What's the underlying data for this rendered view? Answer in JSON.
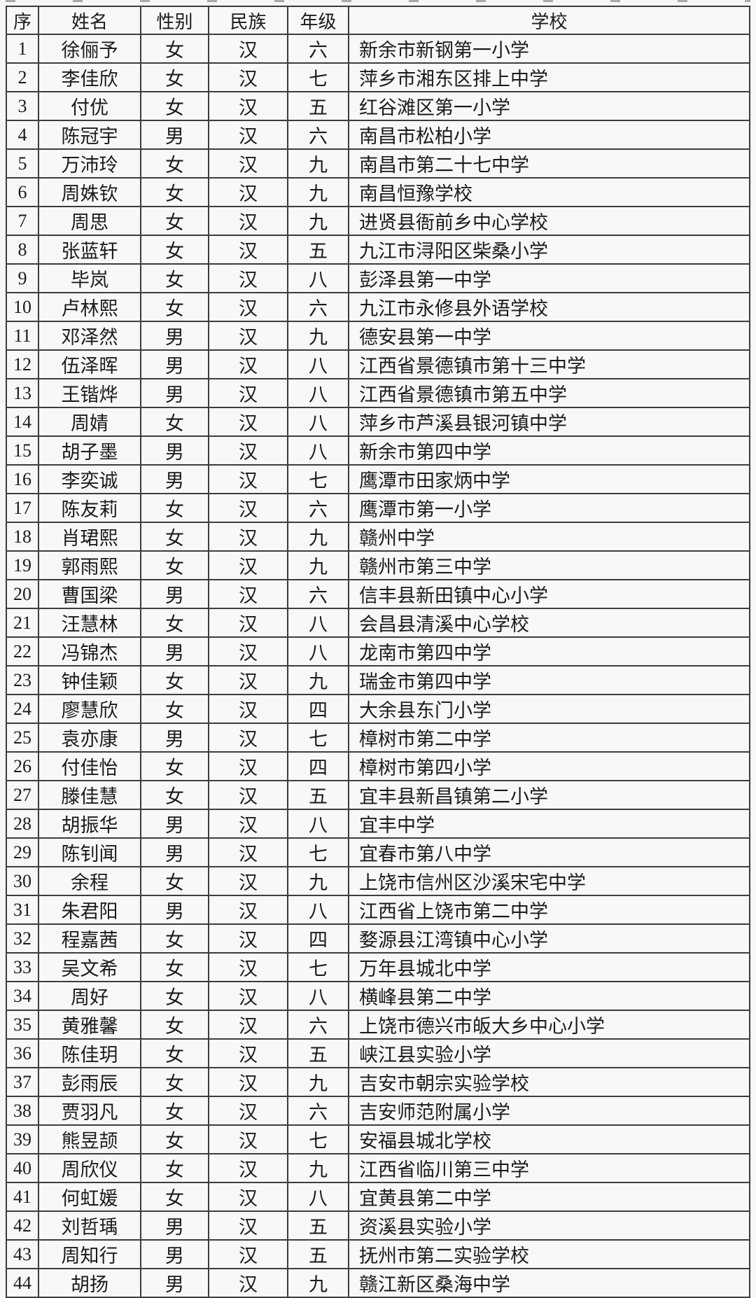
{
  "table": {
    "headers": {
      "no": "序",
      "name": "姓名",
      "gender": "性别",
      "ethnicity": "民族",
      "grade": "年级",
      "school": "学校"
    },
    "rows": [
      {
        "no": "1",
        "name": "徐俪予",
        "gender": "女",
        "ethnicity": "汉",
        "grade": "六",
        "school": "新余市新钢第一小学"
      },
      {
        "no": "2",
        "name": "李佳欣",
        "gender": "女",
        "ethnicity": "汉",
        "grade": "七",
        "school": "萍乡市湘东区排上中学"
      },
      {
        "no": "3",
        "name": "付优",
        "gender": "女",
        "ethnicity": "汉",
        "grade": "五",
        "school": "红谷滩区第一小学"
      },
      {
        "no": "4",
        "name": "陈冠宇",
        "gender": "男",
        "ethnicity": "汉",
        "grade": "六",
        "school": "南昌市松柏小学"
      },
      {
        "no": "5",
        "name": "万沛玲",
        "gender": "女",
        "ethnicity": "汉",
        "grade": "九",
        "school": "南昌市第二十七中学"
      },
      {
        "no": "6",
        "name": "周姝钦",
        "gender": "女",
        "ethnicity": "汉",
        "grade": "九",
        "school": "南昌恒豫学校"
      },
      {
        "no": "7",
        "name": "周思",
        "gender": "女",
        "ethnicity": "汉",
        "grade": "九",
        "school": "进贤县衙前乡中心学校"
      },
      {
        "no": "8",
        "name": "张蓝轩",
        "gender": "女",
        "ethnicity": "汉",
        "grade": "五",
        "school": "九江市浔阳区柴桑小学"
      },
      {
        "no": "9",
        "name": "毕岚",
        "gender": "女",
        "ethnicity": "汉",
        "grade": "八",
        "school": "彭泽县第一中学"
      },
      {
        "no": "10",
        "name": "卢林熙",
        "gender": "女",
        "ethnicity": "汉",
        "grade": "六",
        "school": "九江市永修县外语学校"
      },
      {
        "no": "11",
        "name": "邓泽然",
        "gender": "男",
        "ethnicity": "汉",
        "grade": "九",
        "school": "德安县第一中学"
      },
      {
        "no": "12",
        "name": "伍泽晖",
        "gender": "男",
        "ethnicity": "汉",
        "grade": "八",
        "school": "江西省景德镇市第十三中学"
      },
      {
        "no": "13",
        "name": "王锴烨",
        "gender": "男",
        "ethnicity": "汉",
        "grade": "八",
        "school": "江西省景德镇市第五中学"
      },
      {
        "no": "14",
        "name": "周婧",
        "gender": "女",
        "ethnicity": "汉",
        "grade": "八",
        "school": "萍乡市芦溪县银河镇中学"
      },
      {
        "no": "15",
        "name": "胡子墨",
        "gender": "男",
        "ethnicity": "汉",
        "grade": "八",
        "school": "新余市第四中学"
      },
      {
        "no": "16",
        "name": "李奕诚",
        "gender": "男",
        "ethnicity": "汉",
        "grade": "七",
        "school": "鹰潭市田家炳中学"
      },
      {
        "no": "17",
        "name": "陈友莉",
        "gender": "女",
        "ethnicity": "汉",
        "grade": "六",
        "school": "鹰潭市第一小学"
      },
      {
        "no": "18",
        "name": "肖珺熙",
        "gender": "女",
        "ethnicity": "汉",
        "grade": "九",
        "school": "赣州中学"
      },
      {
        "no": "19",
        "name": "郭雨熙",
        "gender": "女",
        "ethnicity": "汉",
        "grade": "九",
        "school": "赣州市第三中学"
      },
      {
        "no": "20",
        "name": "曹国梁",
        "gender": "男",
        "ethnicity": "汉",
        "grade": "六",
        "school": "信丰县新田镇中心小学"
      },
      {
        "no": "21",
        "name": "汪慧林",
        "gender": "女",
        "ethnicity": "汉",
        "grade": "八",
        "school": "会昌县清溪中心学校"
      },
      {
        "no": "22",
        "name": "冯锦杰",
        "gender": "男",
        "ethnicity": "汉",
        "grade": "八",
        "school": "龙南市第四中学"
      },
      {
        "no": "23",
        "name": "钟佳颖",
        "gender": "女",
        "ethnicity": "汉",
        "grade": "九",
        "school": "瑞金市第四中学"
      },
      {
        "no": "24",
        "name": "廖慧欣",
        "gender": "女",
        "ethnicity": "汉",
        "grade": "四",
        "school": "大余县东门小学"
      },
      {
        "no": "25",
        "name": "袁亦康",
        "gender": "男",
        "ethnicity": "汉",
        "grade": "七",
        "school": "樟树市第二中学"
      },
      {
        "no": "26",
        "name": "付佳怡",
        "gender": "女",
        "ethnicity": "汉",
        "grade": "四",
        "school": "樟树市第四小学"
      },
      {
        "no": "27",
        "name": "滕佳慧",
        "gender": "女",
        "ethnicity": "汉",
        "grade": "五",
        "school": "宜丰县新昌镇第二小学"
      },
      {
        "no": "28",
        "name": "胡振华",
        "gender": "男",
        "ethnicity": "汉",
        "grade": "八",
        "school": "宜丰中学"
      },
      {
        "no": "29",
        "name": "陈钊闻",
        "gender": "男",
        "ethnicity": "汉",
        "grade": "七",
        "school": "宜春市第八中学"
      },
      {
        "no": "30",
        "name": "余程",
        "gender": "女",
        "ethnicity": "汉",
        "grade": "九",
        "school": "上饶市信州区沙溪宋宅中学"
      },
      {
        "no": "31",
        "name": "朱君阳",
        "gender": "男",
        "ethnicity": "汉",
        "grade": "八",
        "school": "江西省上饶市第二中学"
      },
      {
        "no": "32",
        "name": "程嘉茜",
        "gender": "女",
        "ethnicity": "汉",
        "grade": "四",
        "school": "婺源县江湾镇中心小学"
      },
      {
        "no": "33",
        "name": "吴文希",
        "gender": "女",
        "ethnicity": "汉",
        "grade": "七",
        "school": "万年县城北中学"
      },
      {
        "no": "34",
        "name": "周好",
        "gender": "女",
        "ethnicity": "汉",
        "grade": "八",
        "school": "横峰县第二中学"
      },
      {
        "no": "35",
        "name": "黄雅馨",
        "gender": "女",
        "ethnicity": "汉",
        "grade": "六",
        "school": "上饶市德兴市皈大乡中心小学"
      },
      {
        "no": "36",
        "name": "陈佳玥",
        "gender": "女",
        "ethnicity": "汉",
        "grade": "五",
        "school": "峡江县实验小学"
      },
      {
        "no": "37",
        "name": "彭雨辰",
        "gender": "女",
        "ethnicity": "汉",
        "grade": "九",
        "school": "吉安市朝宗实验学校"
      },
      {
        "no": "38",
        "name": "贾羽凡",
        "gender": "女",
        "ethnicity": "汉",
        "grade": "六",
        "school": "吉安师范附属小学"
      },
      {
        "no": "39",
        "name": "熊昱颉",
        "gender": "女",
        "ethnicity": "汉",
        "grade": "七",
        "school": "安福县城北学校"
      },
      {
        "no": "40",
        "name": "周欣仪",
        "gender": "女",
        "ethnicity": "汉",
        "grade": "九",
        "school": "江西省临川第三中学"
      },
      {
        "no": "41",
        "name": "何虹媛",
        "gender": "女",
        "ethnicity": "汉",
        "grade": "八",
        "school": "宜黄县第二中学"
      },
      {
        "no": "42",
        "name": "刘哲瑀",
        "gender": "男",
        "ethnicity": "汉",
        "grade": "五",
        "school": "资溪县实验小学"
      },
      {
        "no": "43",
        "name": "周知行",
        "gender": "男",
        "ethnicity": "汉",
        "grade": "五",
        "school": "抚州市第二实验学校"
      },
      {
        "no": "44",
        "name": "胡扬",
        "gender": "男",
        "ethnicity": "汉",
        "grade": "九",
        "school": "赣江新区桑海中学"
      }
    ]
  }
}
